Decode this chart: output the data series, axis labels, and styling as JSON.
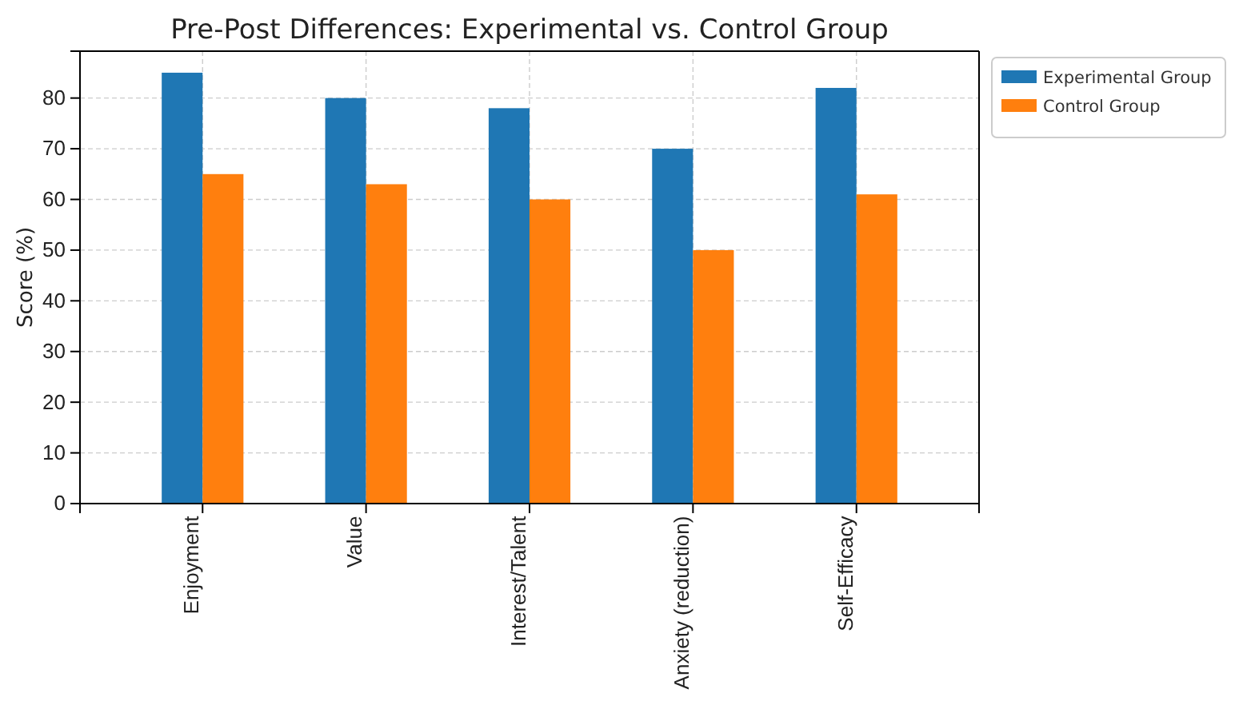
{
  "chart_data": {
    "type": "bar",
    "title": "Pre-Post Differences: Experimental vs. Control Group",
    "ylabel": "Score (%)",
    "categories": [
      "Enjoyment",
      "Value",
      "Interest/Talent",
      "Anxiety (reduction)",
      "Self-Efficacy"
    ],
    "series": [
      {
        "name": "Experimental Group",
        "color": "#1f77b4",
        "values": [
          85,
          80,
          78,
          70,
          82
        ]
      },
      {
        "name": "Control Group",
        "color": "#ff7f0e",
        "values": [
          65,
          63,
          60,
          50,
          61
        ]
      }
    ],
    "ylim": [
      0,
      89.25
    ],
    "yticks": [
      0,
      10,
      20,
      30,
      40,
      50,
      60,
      70,
      80
    ],
    "grid": true,
    "legend": "top right"
  }
}
